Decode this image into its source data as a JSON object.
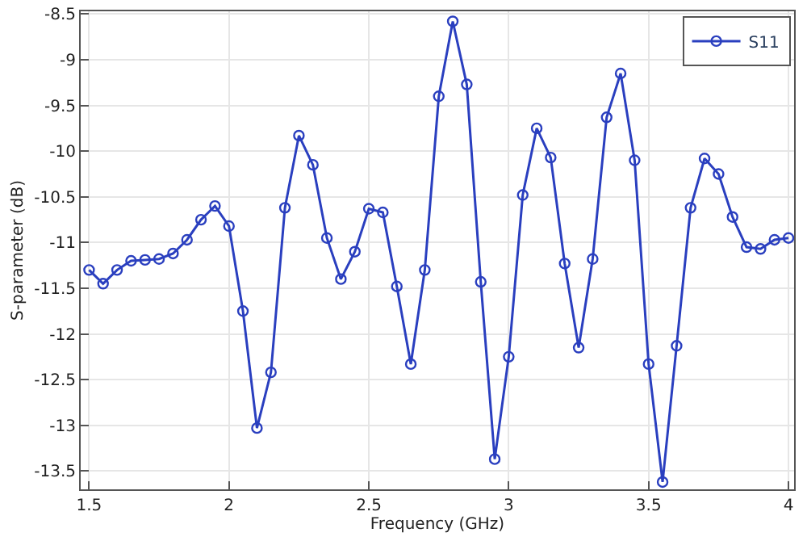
{
  "chart_data": {
    "type": "line",
    "xlabel": "Frequency (GHz)",
    "ylabel": "S-parameter (dB)",
    "x": [
      1.5,
      1.55,
      1.6,
      1.65,
      1.7,
      1.75,
      1.8,
      1.85,
      1.9,
      1.95,
      2.0,
      2.05,
      2.1,
      2.15,
      2.2,
      2.25,
      2.3,
      2.35,
      2.4,
      2.45,
      2.5,
      2.55,
      2.6,
      2.65,
      2.7,
      2.75,
      2.8,
      2.85,
      2.9,
      2.95,
      3.0,
      3.05,
      3.1,
      3.15,
      3.2,
      3.25,
      3.3,
      3.35,
      3.4,
      3.45,
      3.5,
      3.55,
      3.6,
      3.65,
      3.7,
      3.75,
      3.8,
      3.85,
      3.9,
      3.95,
      4.0
    ],
    "series": [
      {
        "name": "S11",
        "color": "#2a3fbf",
        "values": [
          -11.3,
          -11.45,
          -11.3,
          -11.2,
          -11.19,
          -11.18,
          -11.12,
          -10.97,
          -10.75,
          -10.6,
          -10.82,
          -11.75,
          -13.03,
          -12.42,
          -10.62,
          -9.83,
          -10.15,
          -10.95,
          -11.4,
          -11.1,
          -10.63,
          -10.67,
          -11.48,
          -12.33,
          -11.3,
          -9.4,
          -8.58,
          -9.27,
          -11.43,
          -13.37,
          -12.25,
          -10.48,
          -9.75,
          -10.07,
          -11.23,
          -12.15,
          -11.18,
          -9.63,
          -9.15,
          -10.1,
          -12.33,
          -13.62,
          -12.13,
          -10.62,
          -10.08,
          -10.25,
          -10.72,
          -11.05,
          -11.07,
          -10.97,
          -10.95
        ]
      }
    ],
    "xlim": [
      1.47,
      4.02
    ],
    "xticks": [
      1.5,
      2,
      2.5,
      3,
      3.5,
      4
    ],
    "ylim": [
      -13.7,
      -8.47
    ],
    "yticks": [
      -13.5,
      -13,
      -12.5,
      -12,
      -11.5,
      -11,
      -10.5,
      -10,
      -9.5,
      -9,
      -8.5
    ],
    "grid": true,
    "legend": "top right",
    "marker": "circle",
    "line_style": "solid"
  }
}
